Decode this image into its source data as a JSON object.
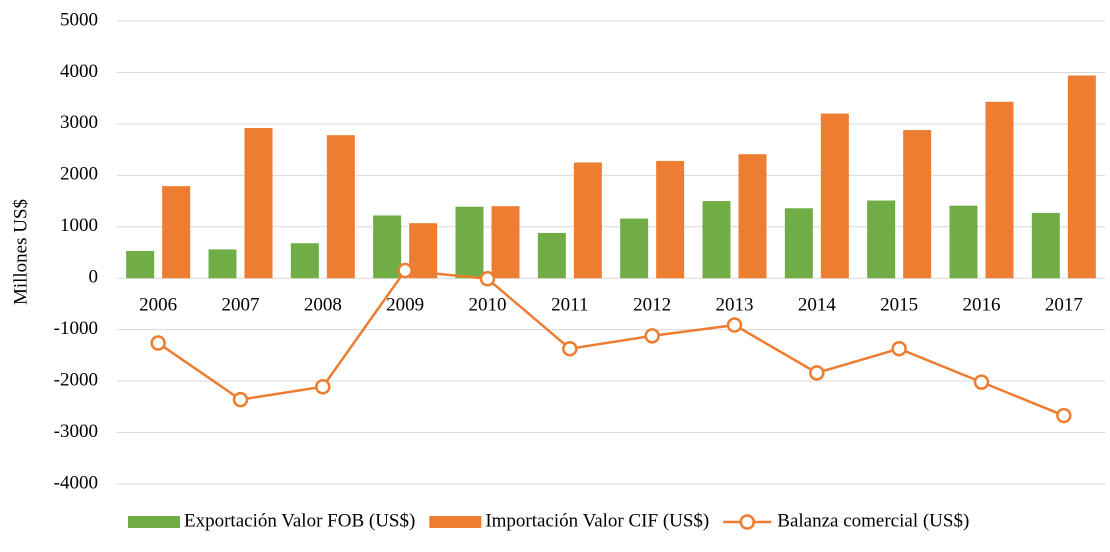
{
  "chart_data": {
    "type": "bar",
    "y_label": "Millones US$",
    "categories": [
      "2006",
      "2007",
      "2008",
      "2009",
      "2010",
      "2011",
      "2012",
      "2013",
      "2014",
      "2015",
      "2016",
      "2017"
    ],
    "series": [
      {
        "name": "Exportación Valor FOB (US$)",
        "type": "bar",
        "color": "#70ad47",
        "values": [
          530,
          560,
          680,
          1220,
          1390,
          880,
          1160,
          1500,
          1360,
          1510,
          1410,
          1270
        ]
      },
      {
        "name": "Importación Valor CIF (US$)",
        "type": "bar",
        "color": "#ed7d31",
        "values": [
          1790,
          2920,
          2780,
          1070,
          1400,
          2250,
          2280,
          2410,
          3200,
          2880,
          3430,
          3940
        ]
      },
      {
        "name": "Balanza comercial (US$)",
        "type": "line",
        "color": "#ed7d31",
        "values": [
          -1260,
          -2360,
          -2110,
          150,
          -10,
          -1370,
          -1120,
          -910,
          -1840,
          -1370,
          -2020,
          -2670
        ]
      }
    ],
    "ylim": [
      -4000,
      5000
    ],
    "yticks": [
      -4000,
      -3000,
      -2000,
      -1000,
      0,
      1000,
      2000,
      3000,
      4000,
      5000
    ],
    "grid": true,
    "legend": "bottom"
  }
}
